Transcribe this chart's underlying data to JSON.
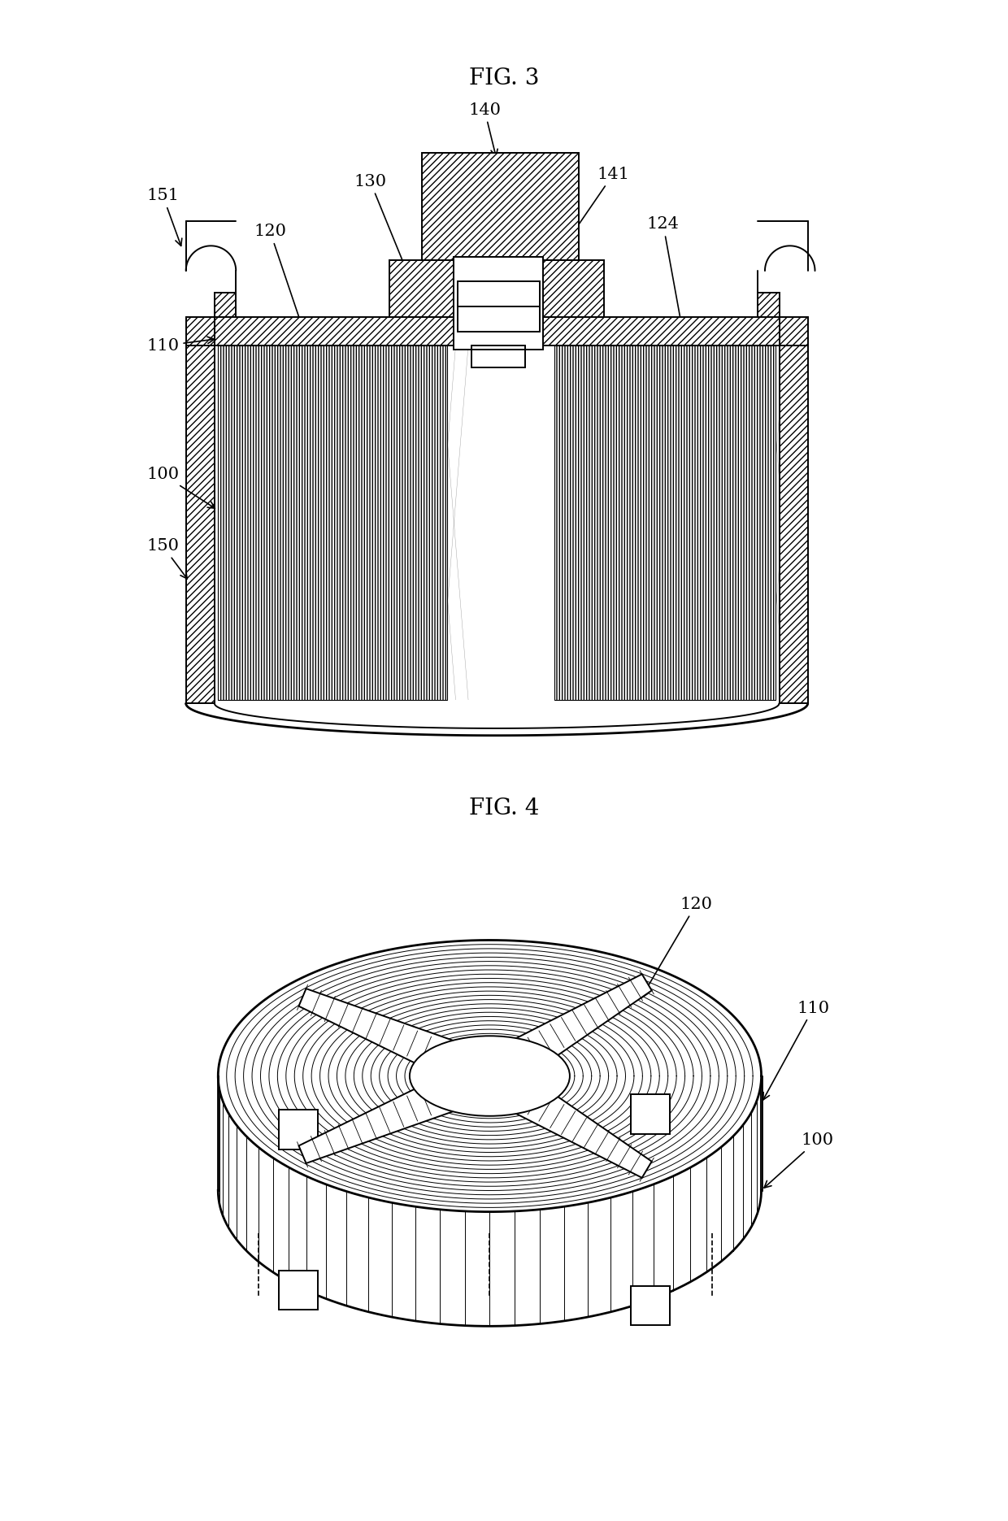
{
  "fig3_title": "FIG. 3",
  "fig4_title": "FIG. 4",
  "bg_color": "#ffffff",
  "line_color": "#000000",
  "title_fontsize": 20,
  "label_fontsize": 15,
  "lw_thin": 0.8,
  "lw_med": 1.4,
  "lw_thick": 2.0
}
